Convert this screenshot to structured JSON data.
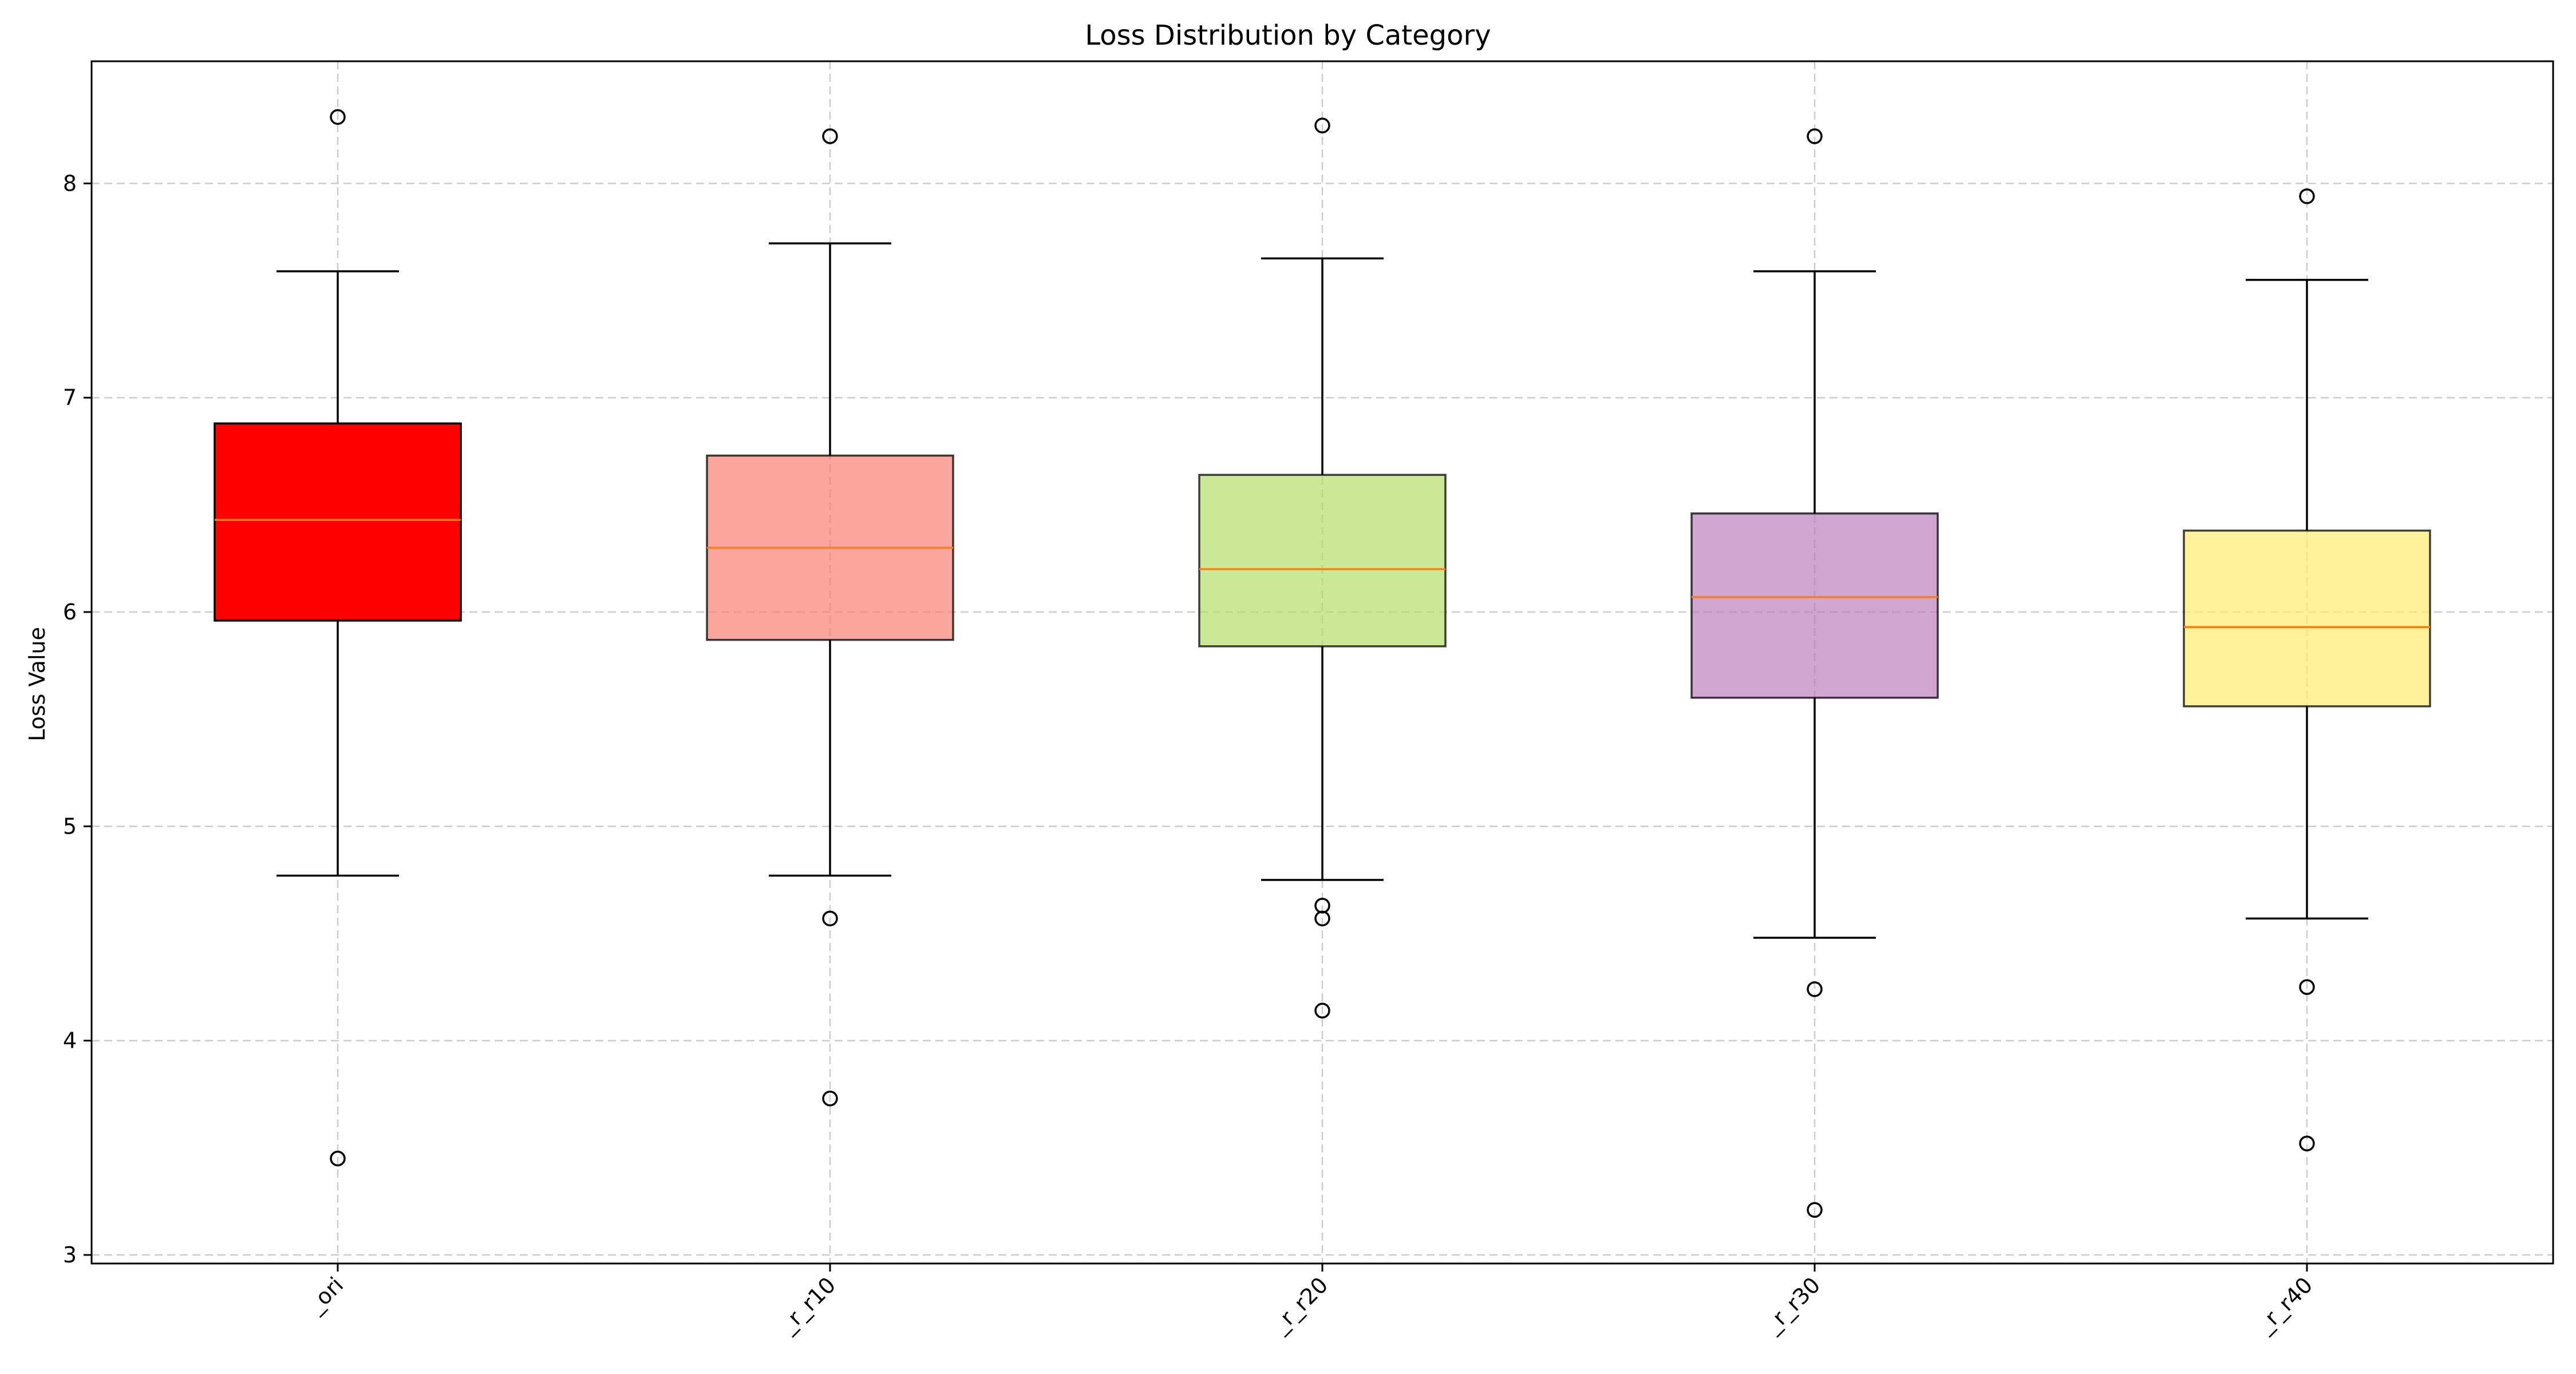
{
  "chart_data": {
    "type": "box",
    "title": "Loss Distribution by Category",
    "xlabel": "",
    "ylabel": "Loss Value",
    "ylim": [
      2.96,
      8.57
    ],
    "yticks": [
      3,
      4,
      5,
      6,
      7,
      8
    ],
    "grid": true,
    "median_color": "#ff7f0e",
    "categories": [
      "_ori",
      "_r_r10",
      "_r_r20",
      "_r_r30",
      "_r_r40"
    ],
    "boxes": [
      {
        "category": "_ori",
        "color": "#ff0000",
        "whisker_low": 4.77,
        "q1": 5.96,
        "median": 6.43,
        "q3": 6.88,
        "whisker_high": 7.59,
        "fliers": [
          8.31,
          3.45
        ]
      },
      {
        "category": "_r_r10",
        "color": "#fa8072",
        "whisker_low": 4.77,
        "q1": 5.87,
        "median": 6.3,
        "q3": 6.73,
        "whisker_high": 7.72,
        "fliers": [
          8.22,
          4.57,
          3.73
        ]
      },
      {
        "category": "_r_r20",
        "color": "#b3de69",
        "whisker_low": 4.75,
        "q1": 5.84,
        "median": 6.2,
        "q3": 6.64,
        "whisker_high": 7.65,
        "fliers": [
          8.27,
          4.63,
          4.57,
          4.14
        ]
      },
      {
        "category": "_r_r30",
        "color": "#bc80bd",
        "whisker_low": 4.48,
        "q1": 5.6,
        "median": 6.07,
        "q3": 6.46,
        "whisker_high": 7.59,
        "fliers": [
          8.22,
          4.24,
          3.21
        ]
      },
      {
        "category": "_r_r40",
        "color": "#ffed6f",
        "whisker_low": 4.57,
        "q1": 5.56,
        "median": 5.93,
        "q3": 6.38,
        "whisker_high": 7.55,
        "fliers": [
          7.94,
          4.25,
          3.52
        ]
      }
    ]
  }
}
